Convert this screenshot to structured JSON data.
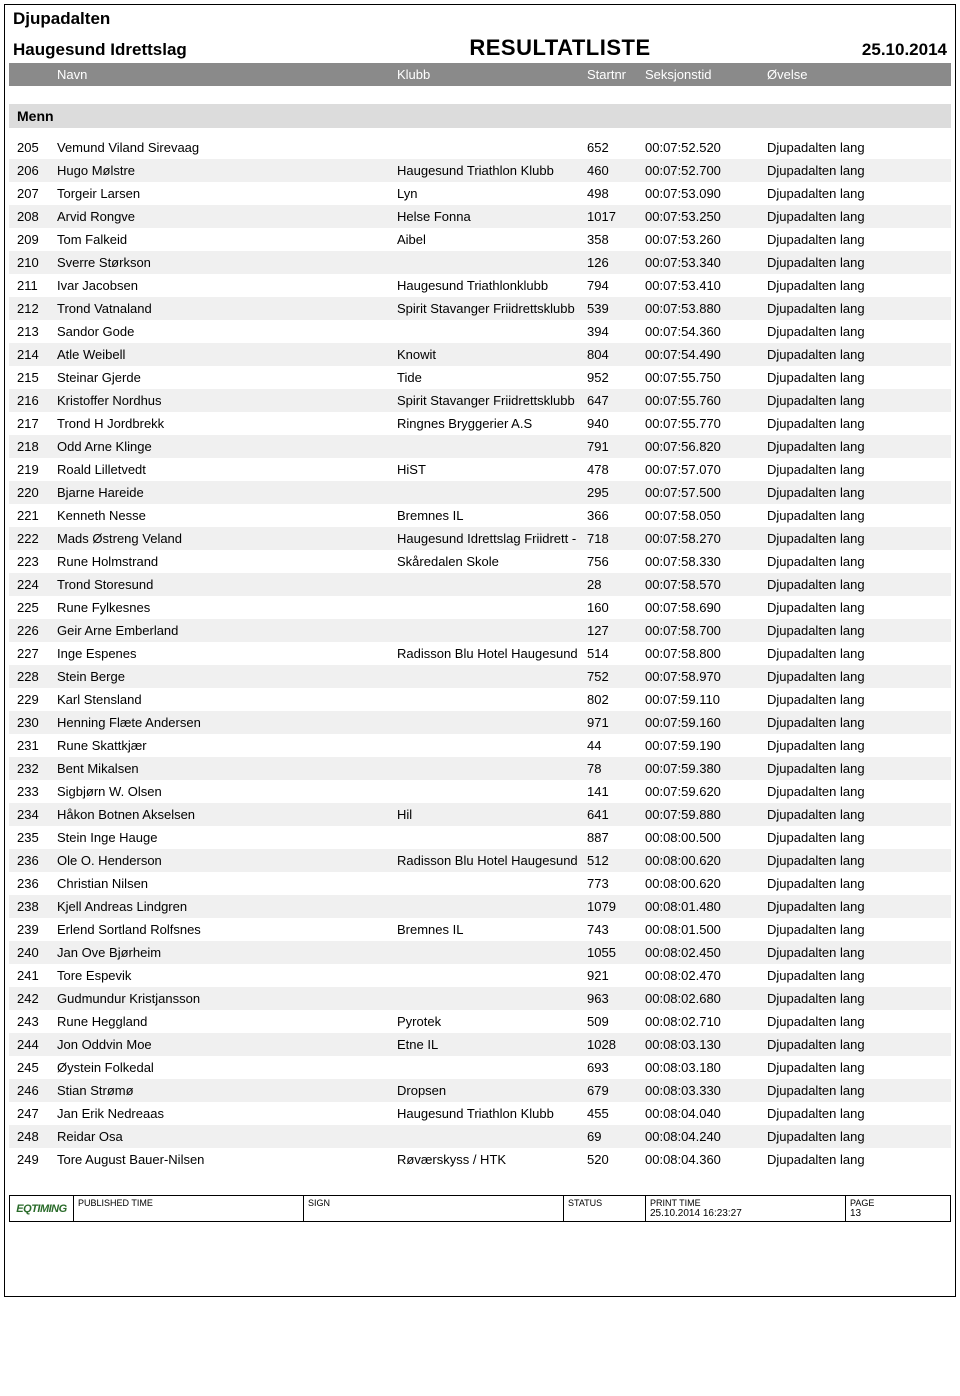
{
  "header": {
    "event_name": "Djupadalten",
    "organizer": "Haugesund Idrettslag",
    "title": "RESULTATLISTE",
    "date": "25.10.2014"
  },
  "columns": {
    "name": "Navn",
    "club": "Klubb",
    "startnr": "Startnr",
    "time": "Seksjonstid",
    "event": "Øvelse"
  },
  "group": "Menn",
  "rows": [
    {
      "place": "205",
      "name": "Vemund Viland Sirevaag",
      "club": "",
      "start": "652",
      "time": "00:07:52.520",
      "event": "Djupadalten lang"
    },
    {
      "place": "206",
      "name": "Hugo Mølstre",
      "club": "Haugesund Triathlon Klubb",
      "start": "460",
      "time": "00:07:52.700",
      "event": "Djupadalten lang"
    },
    {
      "place": "207",
      "name": "Torgeir Larsen",
      "club": "Lyn",
      "start": "498",
      "time": "00:07:53.090",
      "event": "Djupadalten lang"
    },
    {
      "place": "208",
      "name": "Arvid Rongve",
      "club": "Helse Fonna",
      "start": "1017",
      "time": "00:07:53.250",
      "event": "Djupadalten lang"
    },
    {
      "place": "209",
      "name": "Tom Falkeid",
      "club": "Aibel",
      "start": "358",
      "time": "00:07:53.260",
      "event": "Djupadalten lang"
    },
    {
      "place": "210",
      "name": "Sverre Størkson",
      "club": "",
      "start": "126",
      "time": "00:07:53.340",
      "event": "Djupadalten lang"
    },
    {
      "place": "211",
      "name": "Ivar Jacobsen",
      "club": "Haugesund Triathlonklubb",
      "start": "794",
      "time": "00:07:53.410",
      "event": "Djupadalten lang"
    },
    {
      "place": "212",
      "name": "Trond Vatnaland",
      "club": "Spirit Stavanger Friidrettsklubb",
      "start": "539",
      "time": "00:07:53.880",
      "event": "Djupadalten lang"
    },
    {
      "place": "213",
      "name": "Sandor Gode",
      "club": "",
      "start": "394",
      "time": "00:07:54.360",
      "event": "Djupadalten lang"
    },
    {
      "place": "214",
      "name": "Atle Weibell",
      "club": "Knowit",
      "start": "804",
      "time": "00:07:54.490",
      "event": "Djupadalten lang"
    },
    {
      "place": "215",
      "name": "Steinar Gjerde",
      "club": "Tide",
      "start": "952",
      "time": "00:07:55.750",
      "event": "Djupadalten lang"
    },
    {
      "place": "216",
      "name": "Kristoffer Nordhus",
      "club": "Spirit Stavanger Friidrettsklubb",
      "start": "647",
      "time": "00:07:55.760",
      "event": "Djupadalten lang"
    },
    {
      "place": "217",
      "name": "Trond H Jordbrekk",
      "club": "Ringnes Bryggerier A.S",
      "start": "940",
      "time": "00:07:55.770",
      "event": "Djupadalten lang"
    },
    {
      "place": "218",
      "name": "Odd Arne Klinge",
      "club": "",
      "start": "791",
      "time": "00:07:56.820",
      "event": "Djupadalten lang"
    },
    {
      "place": "219",
      "name": "Roald Lilletvedt",
      "club": "HiST",
      "start": "478",
      "time": "00:07:57.070",
      "event": "Djupadalten lang"
    },
    {
      "place": "220",
      "name": "Bjarne Hareide",
      "club": "",
      "start": "295",
      "time": "00:07:57.500",
      "event": "Djupadalten lang"
    },
    {
      "place": "221",
      "name": "Kenneth Nesse",
      "club": "Bremnes IL",
      "start": "366",
      "time": "00:07:58.050",
      "event": "Djupadalten lang"
    },
    {
      "place": "222",
      "name": "Mads Østreng Veland",
      "club": "Haugesund Idrettslag Friidrett -",
      "start": "718",
      "time": "00:07:58.270",
      "event": "Djupadalten lang"
    },
    {
      "place": "223",
      "name": "Rune Holmstrand",
      "club": "Skåredalen Skole",
      "start": "756",
      "time": "00:07:58.330",
      "event": "Djupadalten lang"
    },
    {
      "place": "224",
      "name": "Trond Storesund",
      "club": "",
      "start": "28",
      "time": "00:07:58.570",
      "event": "Djupadalten lang"
    },
    {
      "place": "225",
      "name": "Rune Fylkesnes",
      "club": "",
      "start": "160",
      "time": "00:07:58.690",
      "event": "Djupadalten lang"
    },
    {
      "place": "226",
      "name": "Geir Arne Emberland",
      "club": "",
      "start": "127",
      "time": "00:07:58.700",
      "event": "Djupadalten lang"
    },
    {
      "place": "227",
      "name": "Inge Espenes",
      "club": "Radisson Blu Hotel Haugesund",
      "start": "514",
      "time": "00:07:58.800",
      "event": "Djupadalten lang"
    },
    {
      "place": "228",
      "name": "Stein Berge",
      "club": "",
      "start": "752",
      "time": "00:07:58.970",
      "event": "Djupadalten lang"
    },
    {
      "place": "229",
      "name": "Karl Stensland",
      "club": "",
      "start": "802",
      "time": "00:07:59.110",
      "event": "Djupadalten lang"
    },
    {
      "place": "230",
      "name": "Henning Flæte Andersen",
      "club": "",
      "start": "971",
      "time": "00:07:59.160",
      "event": "Djupadalten lang"
    },
    {
      "place": "231",
      "name": "Rune Skattkjær",
      "club": "",
      "start": "44",
      "time": "00:07:59.190",
      "event": "Djupadalten lang"
    },
    {
      "place": "232",
      "name": "Bent Mikalsen",
      "club": "",
      "start": "78",
      "time": "00:07:59.380",
      "event": "Djupadalten lang"
    },
    {
      "place": "233",
      "name": "Sigbjørn W. Olsen",
      "club": "",
      "start": "141",
      "time": "00:07:59.620",
      "event": "Djupadalten lang"
    },
    {
      "place": "234",
      "name": "Håkon Botnen Akselsen",
      "club": "Hil",
      "start": "641",
      "time": "00:07:59.880",
      "event": "Djupadalten lang"
    },
    {
      "place": "235",
      "name": "Stein Inge Hauge",
      "club": "",
      "start": "887",
      "time": "00:08:00.500",
      "event": "Djupadalten lang"
    },
    {
      "place": "236",
      "name": "Ole O. Henderson",
      "club": "Radisson Blu Hotel Haugesund",
      "start": "512",
      "time": "00:08:00.620",
      "event": "Djupadalten lang"
    },
    {
      "place": "236",
      "name": "Christian Nilsen",
      "club": "",
      "start": "773",
      "time": "00:08:00.620",
      "event": "Djupadalten lang"
    },
    {
      "place": "238",
      "name": "Kjell Andreas Lindgren",
      "club": "",
      "start": "1079",
      "time": "00:08:01.480",
      "event": "Djupadalten lang"
    },
    {
      "place": "239",
      "name": "Erlend Sortland Rolfsnes",
      "club": "Bremnes IL",
      "start": "743",
      "time": "00:08:01.500",
      "event": "Djupadalten lang"
    },
    {
      "place": "240",
      "name": "Jan Ove Bjørheim",
      "club": "",
      "start": "1055",
      "time": "00:08:02.450",
      "event": "Djupadalten lang"
    },
    {
      "place": "241",
      "name": "Tore Espevik",
      "club": "",
      "start": "921",
      "time": "00:08:02.470",
      "event": "Djupadalten lang"
    },
    {
      "place": "242",
      "name": "Gudmundur Kristjansson",
      "club": "",
      "start": "963",
      "time": "00:08:02.680",
      "event": "Djupadalten lang"
    },
    {
      "place": "243",
      "name": "Rune Heggland",
      "club": "Pyrotek",
      "start": "509",
      "time": "00:08:02.710",
      "event": "Djupadalten lang"
    },
    {
      "place": "244",
      "name": "Jon Oddvin Moe",
      "club": "Etne IL",
      "start": "1028",
      "time": "00:08:03.130",
      "event": "Djupadalten lang"
    },
    {
      "place": "245",
      "name": "Øystein Folkedal",
      "club": "",
      "start": "693",
      "time": "00:08:03.180",
      "event": "Djupadalten lang"
    },
    {
      "place": "246",
      "name": "Stian Strømø",
      "club": "Dropsen",
      "start": "679",
      "time": "00:08:03.330",
      "event": "Djupadalten lang"
    },
    {
      "place": "247",
      "name": "Jan Erik Nedreaas",
      "club": "Haugesund Triathlon Klubb",
      "start": "455",
      "time": "00:08:04.040",
      "event": "Djupadalten lang"
    },
    {
      "place": "248",
      "name": "Reidar Osa",
      "club": "",
      "start": "69",
      "time": "00:08:04.240",
      "event": "Djupadalten lang"
    },
    {
      "place": "249",
      "name": "Tore August Bauer-Nilsen",
      "club": "Røværskyss / HTK",
      "start": "520",
      "time": "00:08:04.360",
      "event": "Djupadalten lang"
    }
  ],
  "footer": {
    "logo": "EQTIMING",
    "published_label": "PUBLISHED TIME",
    "sign_label": "SIGN",
    "status_label": "STATUS",
    "print_label": "PRINT TIME",
    "print_value": "25.10.2014 16:23:27",
    "page_label": "PAGE",
    "page_value": "13"
  },
  "colors": {
    "header_bar_bg": "#8a8a8a",
    "header_bar_fg": "#ffffff",
    "group_bg": "#dcdcdc",
    "row_alt_bg": "#f0f0f0",
    "border": "#000000"
  }
}
